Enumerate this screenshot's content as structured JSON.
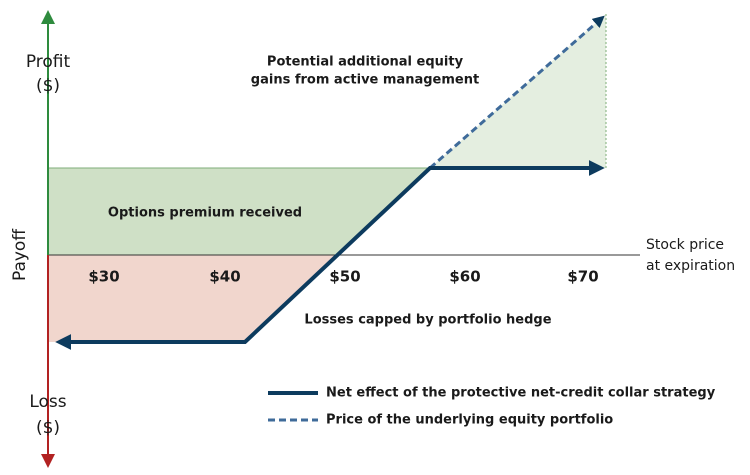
{
  "axis": {
    "profit": [
      "Profit",
      "($)"
    ],
    "loss": [
      "Loss",
      "($)"
    ],
    "y_label": "Payoff",
    "x_label": [
      "Stock price",
      "at expiration"
    ]
  },
  "x_ticks": [
    "$30",
    "$40",
    "$50",
    "$60",
    "$70"
  ],
  "annotations": {
    "upside": [
      "Potential additional equity",
      "gains from active management"
    ],
    "premium": "Options premium received",
    "losses": "Losses capped by portfolio hedge"
  },
  "legend": [
    "Net effect of the protective net-credit collar strategy",
    "Price of the underlying equity portfolio"
  ]
}
